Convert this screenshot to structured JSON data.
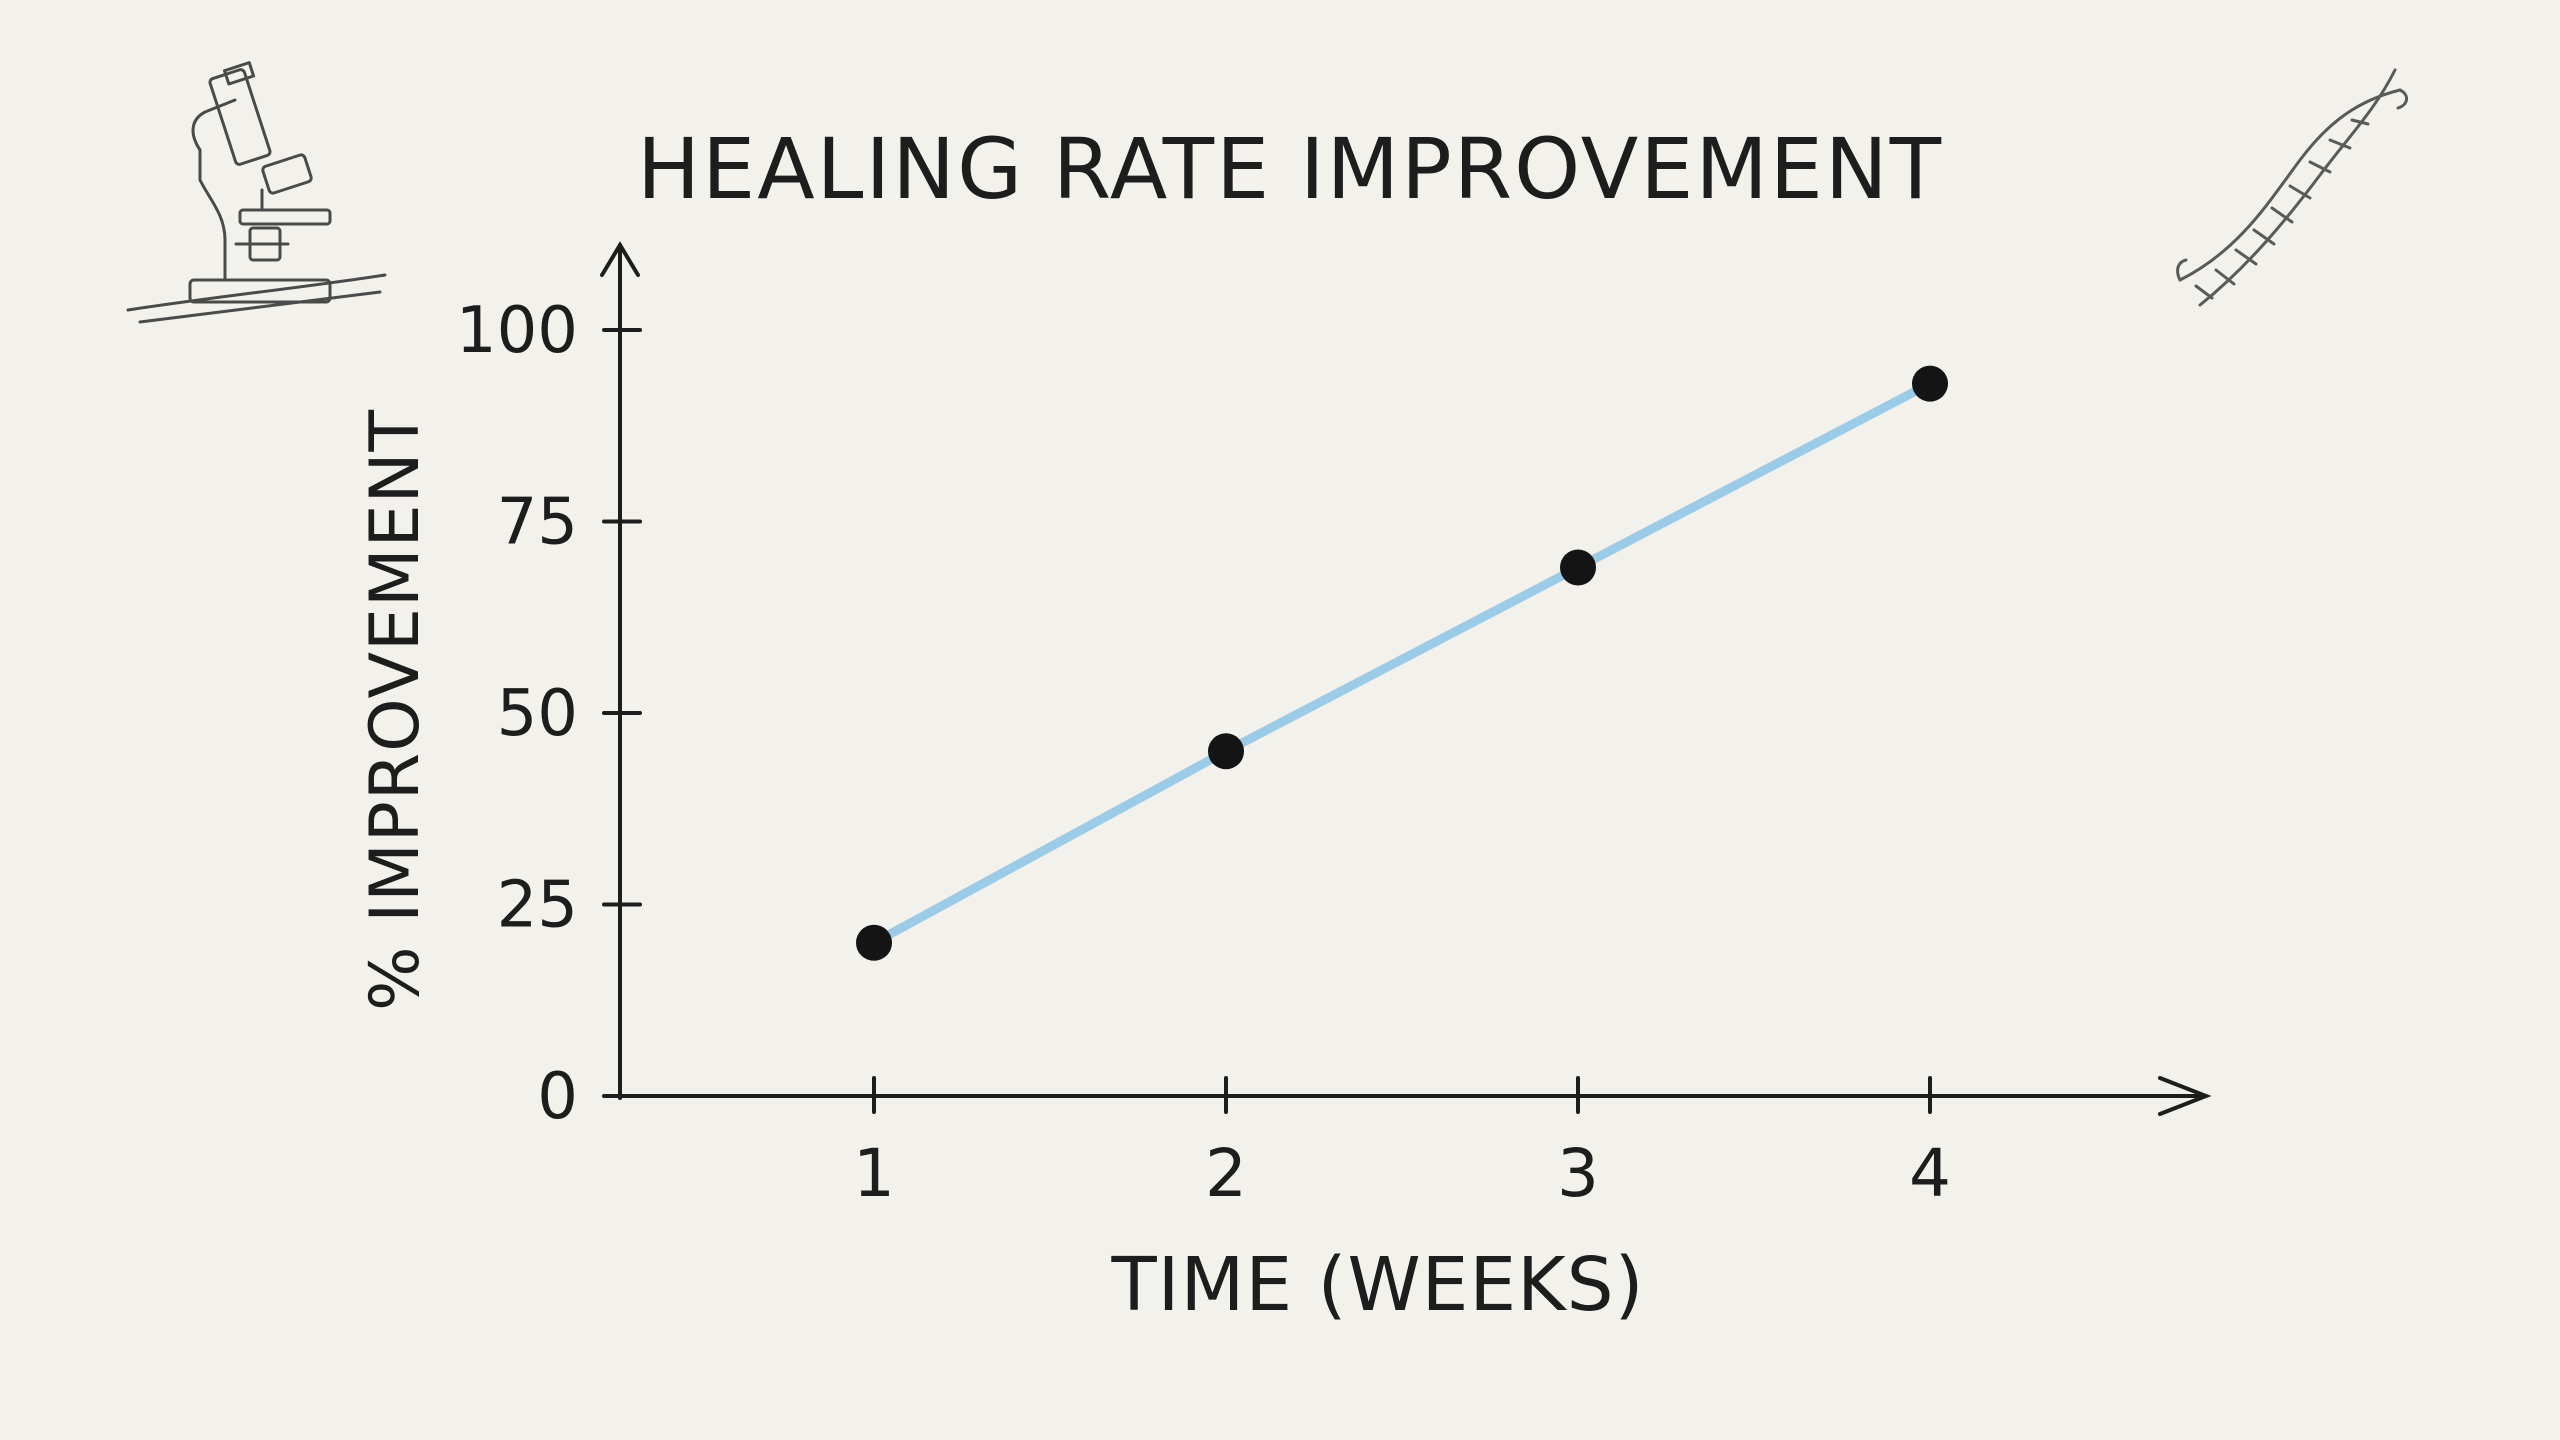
{
  "chart_data": {
    "type": "line",
    "title": "HEALING RATE IMPROVEMENT",
    "xlabel": "TIME (WEEKS)",
    "ylabel": "% IMPROVEMENT",
    "x": [
      1,
      2,
      3,
      4
    ],
    "x_ticks": [
      "1",
      "2",
      "3",
      "4"
    ],
    "y_ticks": [
      "0",
      "25",
      "50",
      "75",
      "100"
    ],
    "series": [
      {
        "values": [
          20,
          45,
          69,
          93
        ]
      }
    ],
    "ylim": [
      0,
      100
    ],
    "xlim": [
      1,
      4
    ],
    "grid": false,
    "legend": "none",
    "colors": {
      "line": "#9ccbe8",
      "marker": "#141414",
      "axis": "#1d1d1d",
      "background": "#f3f1ec"
    }
  },
  "decorations": {
    "left_icon": "microscope-icon",
    "right_icon": "dna-helix-icon"
  }
}
